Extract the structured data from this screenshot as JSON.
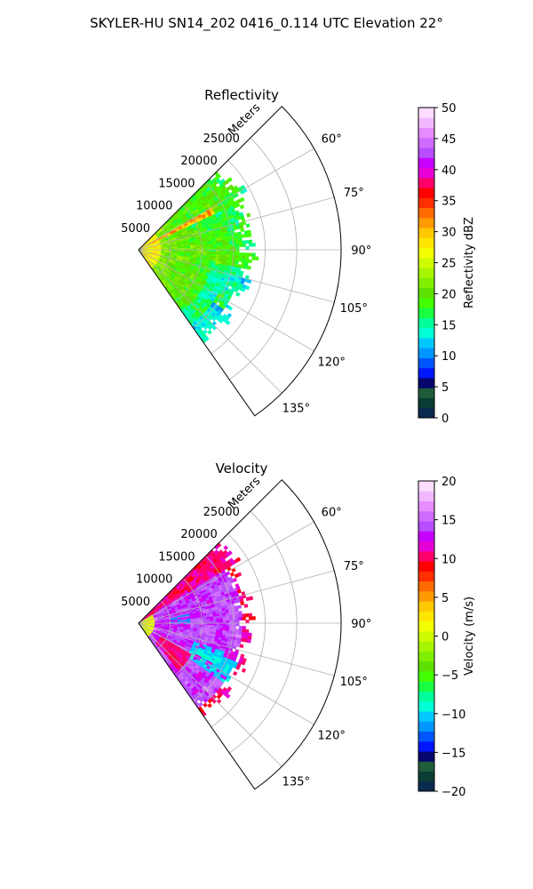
{
  "figure": {
    "title": "SKYLER-HU  SN14_202  0416_0.114 UTC Elevation 22°"
  },
  "chart_data": [
    {
      "type": "heatmap",
      "projection": "polar-sector",
      "title": "Reflectivity",
      "radial_label": "Meters",
      "radial_ticks": [
        5000,
        10000,
        15000,
        20000,
        25000
      ],
      "radial_tick_labels": [
        "5000",
        "10000",
        "15000",
        "20000",
        "25000"
      ],
      "r_max": 32000,
      "data_r_max": 19500,
      "angle_range_deg": [
        45,
        145
      ],
      "angle_ticks": [
        60,
        75,
        90,
        105,
        120,
        135
      ],
      "angle_tick_labels": [
        "60°",
        "75°",
        "90°",
        "105°",
        "120°",
        "135°"
      ],
      "colorbar": {
        "label": "Reflectivity dBZ",
        "min": 0,
        "max": 50,
        "ticks": [
          0,
          5,
          10,
          15,
          20,
          25,
          30,
          35,
          40,
          45,
          50
        ],
        "tick_labels": [
          "0",
          "5",
          "10",
          "15",
          "20",
          "25",
          "30",
          "35",
          "40",
          "45",
          "50"
        ],
        "colors": [
          "#0b2a4f",
          "#0a3d33",
          "#1f5c3a",
          "#06056c",
          "#0016ff",
          "#0057ff",
          "#0096ff",
          "#00c8ff",
          "#00ffd6",
          "#00ff9c",
          "#19ff42",
          "#43ff00",
          "#5de000",
          "#80ee00",
          "#a7f500",
          "#cffb00",
          "#f3ff00",
          "#ffe600",
          "#ffc800",
          "#ff9a00",
          "#ff6b00",
          "#ff2f00",
          "#ff0000",
          "#ff006b",
          "#e600d6",
          "#c800ff",
          "#b84dff",
          "#cf6bff",
          "#e68cff",
          "#f2b8ff",
          "#fcdcff"
        ]
      },
      "description_values": {
        "typical_dBZ": 17,
        "core_dBZ": 28,
        "edge_dBZ": 14
      }
    },
    {
      "type": "heatmap",
      "projection": "polar-sector",
      "title": "Velocity",
      "radial_label": "Meters",
      "radial_ticks": [
        5000,
        10000,
        15000,
        20000,
        25000
      ],
      "radial_tick_labels": [
        "5000",
        "10000",
        "15000",
        "20000",
        "25000"
      ],
      "r_max": 32000,
      "data_r_max": 19500,
      "angle_range_deg": [
        45,
        145
      ],
      "angle_ticks": [
        60,
        75,
        90,
        105,
        120,
        135
      ],
      "angle_tick_labels": [
        "60°",
        "75°",
        "90°",
        "105°",
        "120°",
        "135°"
      ],
      "colorbar": {
        "label": "Velocity (m/s)",
        "min": -20,
        "max": 20,
        "ticks": [
          -20,
          -15,
          -10,
          -5,
          0,
          5,
          10,
          15,
          20
        ],
        "tick_labels": [
          "−20",
          "−15",
          "−10",
          "−5",
          "0",
          "5",
          "10",
          "15",
          "20"
        ],
        "colors": [
          "#0b2a4f",
          "#0a3d33",
          "#1f5c3a",
          "#06056c",
          "#0016ff",
          "#0057ff",
          "#0096ff",
          "#00c8ff",
          "#00ffd6",
          "#00ff9c",
          "#19ff42",
          "#43ff00",
          "#5de000",
          "#80ee00",
          "#a7f500",
          "#cffb00",
          "#f3ff00",
          "#ffe600",
          "#ffc800",
          "#ff9a00",
          "#ff6b00",
          "#ff2f00",
          "#ff0000",
          "#ff006b",
          "#e600d6",
          "#c800ff",
          "#b84dff",
          "#cf6bff",
          "#e68cff",
          "#f2b8ff",
          "#fcdcff"
        ]
      },
      "description_values": {
        "typical_ms": 13,
        "outer_ms": 9,
        "core_ms": -11
      }
    }
  ]
}
